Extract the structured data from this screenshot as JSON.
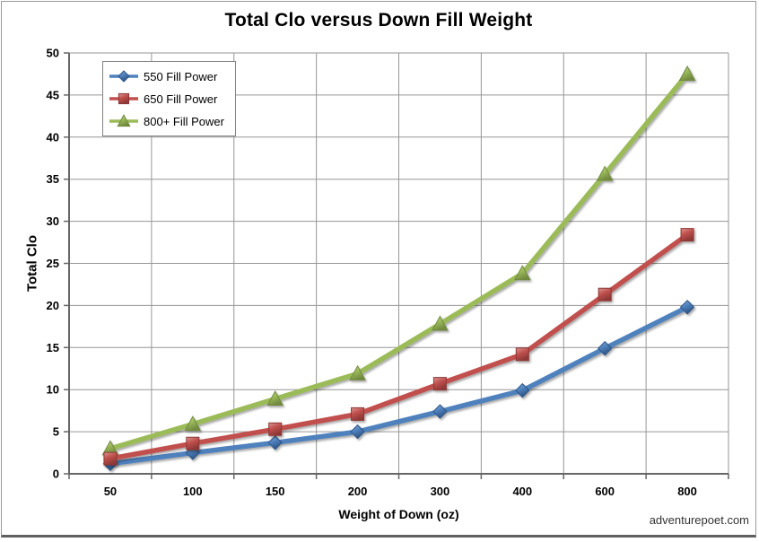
{
  "title": "Total Clo versus Down Fill Weight",
  "watermark": "adventurepoet.com",
  "colors": {
    "background": "#FFFFFF",
    "gridline": "#969696",
    "axis": "#666666",
    "text": "#000000",
    "frame_border": "#9A9A9A",
    "frame_shadow": "#606060",
    "legend_border": "#848484",
    "watermark_text": "#333333"
  },
  "chart_data": {
    "type": "line",
    "title": "Total Clo versus Down Fill Weight",
    "xlabel": "Weight of Down (oz)",
    "ylabel": "Total Clo",
    "categories": [
      50,
      100,
      150,
      200,
      300,
      400,
      600,
      800
    ],
    "x_axis_type": "category",
    "y_ticks": [
      0,
      5,
      10,
      15,
      20,
      25,
      30,
      35,
      40,
      45,
      50
    ],
    "ylim": [
      0,
      50
    ],
    "grid": true,
    "legend_position": "top-left-inside",
    "legend_order": [
      "550 Fill Power",
      "650 Fill Power",
      "800+ Fill Power"
    ],
    "series": [
      {
        "name": "550 Fill Power",
        "marker": "diamond",
        "color": "#4F81BD",
        "color_light": "#8FB2DA",
        "color_dark": "#2E5585",
        "values": [
          1.2,
          2.5,
          3.7,
          5.0,
          7.4,
          9.9,
          14.9,
          19.8
        ]
      },
      {
        "name": "650 Fill Power",
        "marker": "square",
        "color": "#C0504D",
        "color_light": "#DA9694",
        "color_dark": "#8C3836",
        "values": [
          1.8,
          3.6,
          5.3,
          7.1,
          10.7,
          14.2,
          21.3,
          28.4
        ]
      },
      {
        "name": "800+ Fill Power",
        "marker": "triangle",
        "color": "#9BBB59",
        "color_light": "#C3D69B",
        "color_dark": "#71893F",
        "values": [
          3.0,
          5.9,
          8.9,
          11.9,
          17.8,
          23.8,
          35.6,
          47.5
        ]
      }
    ]
  }
}
